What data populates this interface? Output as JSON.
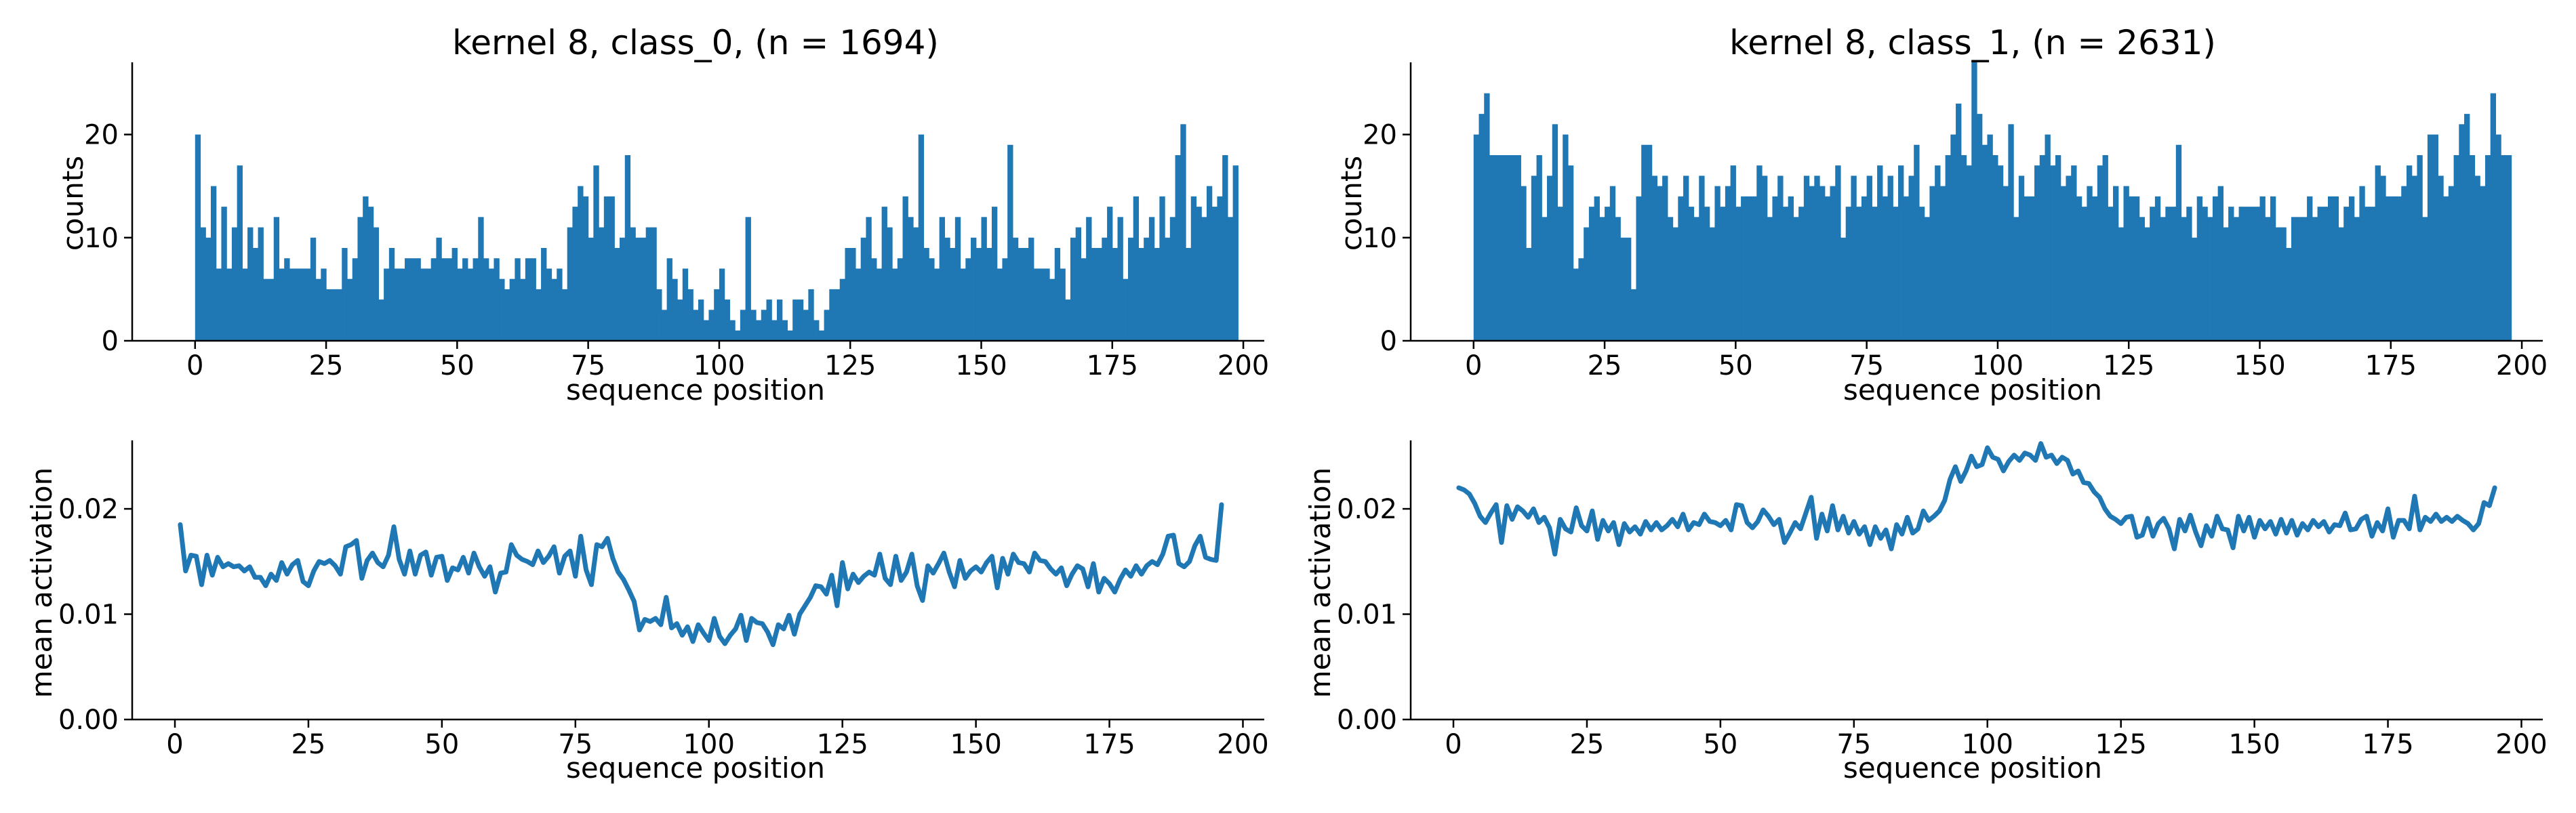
{
  "chart_data": [
    {
      "type": "bar",
      "panel": "top-left",
      "title": "kernel 8, class_0, (n = 1694)",
      "xlabel": "sequence position",
      "ylabel": "counts",
      "xlim": [
        -12,
        204
      ],
      "ylim": [
        0,
        27
      ],
      "xticks": [
        0,
        25,
        50,
        75,
        100,
        125,
        150,
        175,
        200
      ],
      "yticks": [
        0,
        10,
        20
      ],
      "color": "#1f77b4",
      "x_start": 0,
      "values": [
        20,
        11,
        10,
        15,
        7,
        13,
        7,
        11,
        17,
        7,
        11,
        9,
        11,
        6,
        6,
        12,
        7,
        8,
        7,
        7,
        7,
        7,
        10,
        6,
        7,
        5,
        5,
        5,
        9,
        6,
        8,
        12,
        14,
        13,
        11,
        4,
        7,
        9,
        7,
        7,
        8,
        8,
        8,
        7,
        7,
        8,
        10,
        8,
        8,
        9,
        7,
        8,
        7,
        8,
        12,
        8,
        7,
        8,
        6,
        5,
        6,
        8,
        6,
        8,
        8,
        5,
        9,
        7,
        6,
        7,
        5,
        11,
        13,
        15,
        14,
        10,
        17,
        11,
        14,
        14,
        9,
        10,
        18,
        11,
        10,
        10,
        11,
        11,
        5,
        3,
        8,
        6,
        4,
        7,
        5,
        3,
        4,
        2,
        3,
        5,
        7,
        4,
        2,
        1,
        3,
        12,
        3,
        2,
        3,
        4,
        2,
        4,
        2,
        1,
        4,
        4,
        3,
        5,
        2,
        1,
        3,
        5,
        5,
        6,
        9,
        9,
        7,
        10,
        12,
        8,
        7,
        13,
        11,
        7,
        8,
        14,
        12,
        11,
        20,
        9,
        8,
        7,
        12,
        10,
        9,
        12,
        7,
        8,
        10,
        9,
        12,
        9,
        13,
        7,
        8,
        19,
        10,
        9,
        9,
        10,
        7,
        7,
        7,
        6,
        9,
        7,
        4,
        10,
        11,
        8,
        12,
        9,
        9,
        10,
        13,
        9,
        12,
        6,
        10,
        14,
        9,
        10,
        12,
        9,
        14,
        10,
        12,
        18,
        21,
        9,
        14,
        13,
        12,
        15,
        13,
        14,
        18,
        12,
        17
      ]
    },
    {
      "type": "bar",
      "panel": "top-right",
      "title": "kernel 8, class_1, (n = 2631)",
      "xlabel": "sequence position",
      "ylabel": "counts",
      "xlim": [
        -12,
        204
      ],
      "ylim": [
        0,
        27
      ],
      "xticks": [
        0,
        25,
        50,
        75,
        100,
        125,
        150,
        175,
        200
      ],
      "yticks": [
        0,
        10,
        20
      ],
      "color": "#1f77b4",
      "x_start": 0,
      "values": [
        20,
        22,
        24,
        18,
        18,
        18,
        18,
        18,
        18,
        15,
        9,
        16,
        18,
        12,
        16,
        21,
        13,
        20,
        17,
        7,
        8,
        11,
        13,
        14,
        12,
        13,
        15,
        12,
        10,
        10,
        5,
        14,
        19,
        19,
        16,
        15,
        16,
        12,
        11,
        14,
        16,
        13,
        12,
        16,
        13,
        11,
        15,
        13,
        15,
        17,
        13,
        14,
        14,
        14,
        17,
        16,
        12,
        14,
        16,
        13,
        14,
        12,
        13,
        16,
        15,
        16,
        15,
        14,
        15,
        17,
        10,
        13,
        16,
        13,
        14,
        16,
        13,
        17,
        14,
        16,
        13,
        17,
        14,
        16,
        19,
        13,
        12,
        15,
        17,
        15,
        18,
        20,
        23,
        18,
        17,
        27,
        22,
        19,
        20,
        18,
        17,
        15,
        21,
        12,
        16,
        14,
        14,
        17,
        18,
        20,
        17,
        18,
        15,
        16,
        17,
        14,
        13,
        15,
        14,
        17,
        18,
        13,
        15,
        11,
        15,
        14,
        14,
        12,
        11,
        13,
        14,
        12,
        13,
        13,
        19,
        12,
        13,
        10,
        14,
        13,
        12,
        14,
        15,
        11,
        13,
        12,
        13,
        13,
        13,
        13,
        14,
        12,
        14,
        11,
        11,
        9,
        12,
        12,
        12,
        14,
        12,
        13,
        13,
        14,
        14,
        11,
        13,
        14,
        12,
        15,
        13,
        13,
        17,
        16,
        14,
        14,
        14,
        15,
        17,
        16,
        18,
        12,
        20,
        20,
        16,
        14,
        15,
        18,
        21,
        22,
        18,
        16,
        15,
        18,
        24,
        20,
        18,
        18
      ]
    },
    {
      "type": "line",
      "panel": "bottom-left",
      "xlabel": "sequence position",
      "ylabel": "mean activation",
      "xlim": [
        -8,
        204
      ],
      "ylim": [
        0,
        0.0265
      ],
      "xticks": [
        0,
        25,
        50,
        75,
        100,
        125,
        150,
        175,
        200
      ],
      "yticks": [
        0,
        0.01,
        0.02
      ],
      "ytick_labels": [
        "0.00",
        "0.01",
        "0.02"
      ],
      "color": "#1f77b4",
      "x_start": 1,
      "values": [
        0.0185,
        0.0141,
        0.0156,
        0.0155,
        0.0128,
        0.0156,
        0.0137,
        0.0154,
        0.0145,
        0.0148,
        0.0145,
        0.0146,
        0.0141,
        0.0145,
        0.0135,
        0.0135,
        0.0127,
        0.0138,
        0.0132,
        0.0149,
        0.0138,
        0.0147,
        0.0151,
        0.0131,
        0.0127,
        0.0141,
        0.015,
        0.0148,
        0.0151,
        0.0146,
        0.0138,
        0.0164,
        0.0166,
        0.017,
        0.0134,
        0.0151,
        0.0158,
        0.0149,
        0.0145,
        0.0156,
        0.0183,
        0.0152,
        0.0138,
        0.016,
        0.0138,
        0.0156,
        0.0159,
        0.0137,
        0.0154,
        0.0155,
        0.0132,
        0.0144,
        0.0142,
        0.0154,
        0.0139,
        0.0158,
        0.0145,
        0.0136,
        0.0145,
        0.0121,
        0.0139,
        0.014,
        0.0166,
        0.0156,
        0.0152,
        0.015,
        0.0147,
        0.016,
        0.0149,
        0.0155,
        0.0164,
        0.0139,
        0.0155,
        0.016,
        0.0136,
        0.0174,
        0.0142,
        0.0128,
        0.0166,
        0.0164,
        0.0172,
        0.0153,
        0.014,
        0.0133,
        0.0123,
        0.0112,
        0.0085,
        0.0095,
        0.0093,
        0.0096,
        0.009,
        0.0116,
        0.0087,
        0.0091,
        0.008,
        0.0088,
        0.0074,
        0.009,
        0.0082,
        0.0075,
        0.0096,
        0.0079,
        0.0072,
        0.008,
        0.0086,
        0.0099,
        0.0075,
        0.0096,
        0.0092,
        0.0091,
        0.0083,
        0.0071,
        0.009,
        0.0086,
        0.0099,
        0.0081,
        0.01,
        0.0108,
        0.0116,
        0.0127,
        0.0126,
        0.0119,
        0.0137,
        0.0108,
        0.0149,
        0.0124,
        0.0138,
        0.013,
        0.0136,
        0.014,
        0.0137,
        0.0157,
        0.0134,
        0.0128,
        0.0155,
        0.0132,
        0.014,
        0.0157,
        0.0127,
        0.0113,
        0.0146,
        0.0139,
        0.0148,
        0.0158,
        0.014,
        0.0126,
        0.0151,
        0.0134,
        0.0141,
        0.0145,
        0.014,
        0.0149,
        0.0155,
        0.0125,
        0.0153,
        0.0138,
        0.0157,
        0.0149,
        0.0148,
        0.014,
        0.0158,
        0.0151,
        0.015,
        0.0143,
        0.0138,
        0.0144,
        0.0127,
        0.0138,
        0.0146,
        0.0143,
        0.0126,
        0.0148,
        0.0121,
        0.0134,
        0.0129,
        0.0121,
        0.0133,
        0.0142,
        0.0136,
        0.0146,
        0.0138,
        0.0146,
        0.015,
        0.0147,
        0.0157,
        0.0174,
        0.0175,
        0.0148,
        0.0145,
        0.015,
        0.0165,
        0.0174,
        0.0154,
        0.0152,
        0.0151,
        0.0204
      ]
    },
    {
      "type": "line",
      "panel": "bottom-right",
      "xlabel": "sequence position",
      "ylabel": "mean activation",
      "xlim": [
        -8,
        204
      ],
      "ylim": [
        0,
        0.0265
      ],
      "xticks": [
        0,
        25,
        50,
        75,
        100,
        125,
        150,
        175,
        200
      ],
      "yticks": [
        0,
        0.01,
        0.02
      ],
      "ytick_labels": [
        "0.00",
        "0.01",
        "0.02"
      ],
      "color": "#1f77b4",
      "x_start": 1,
      "values": [
        0.022,
        0.0218,
        0.0214,
        0.0205,
        0.0193,
        0.0187,
        0.0196,
        0.0204,
        0.0168,
        0.0203,
        0.019,
        0.0202,
        0.0198,
        0.0192,
        0.02,
        0.0187,
        0.0192,
        0.0182,
        0.0157,
        0.019,
        0.0181,
        0.0178,
        0.0201,
        0.0184,
        0.0179,
        0.0198,
        0.0171,
        0.0189,
        0.0179,
        0.0187,
        0.0166,
        0.0186,
        0.0178,
        0.0183,
        0.0176,
        0.0188,
        0.018,
        0.0187,
        0.018,
        0.0184,
        0.019,
        0.0183,
        0.0195,
        0.018,
        0.0187,
        0.0185,
        0.0195,
        0.0188,
        0.0187,
        0.0184,
        0.0189,
        0.018,
        0.0204,
        0.0203,
        0.0187,
        0.0182,
        0.0188,
        0.0199,
        0.0193,
        0.0185,
        0.019,
        0.0168,
        0.0177,
        0.0187,
        0.0181,
        0.0196,
        0.0211,
        0.0172,
        0.0195,
        0.0179,
        0.0203,
        0.018,
        0.0193,
        0.0177,
        0.0188,
        0.0176,
        0.0183,
        0.0166,
        0.0183,
        0.0172,
        0.018,
        0.0162,
        0.0185,
        0.0176,
        0.0192,
        0.0177,
        0.0181,
        0.0198,
        0.0189,
        0.0193,
        0.0198,
        0.0208,
        0.0228,
        0.024,
        0.0226,
        0.0236,
        0.025,
        0.024,
        0.0242,
        0.0258,
        0.0249,
        0.0247,
        0.0236,
        0.0245,
        0.0251,
        0.0246,
        0.0253,
        0.0251,
        0.0246,
        0.0262,
        0.0249,
        0.0251,
        0.0243,
        0.0249,
        0.0246,
        0.0233,
        0.0236,
        0.0225,
        0.0224,
        0.0216,
        0.0211,
        0.02,
        0.0193,
        0.019,
        0.0186,
        0.0192,
        0.0193,
        0.0173,
        0.0175,
        0.0191,
        0.0174,
        0.0186,
        0.0191,
        0.0181,
        0.0162,
        0.019,
        0.0179,
        0.0194,
        0.0178,
        0.0165,
        0.0184,
        0.0174,
        0.0193,
        0.0181,
        0.018,
        0.0163,
        0.0193,
        0.0179,
        0.0192,
        0.0173,
        0.0189,
        0.0181,
        0.0188,
        0.0176,
        0.019,
        0.0177,
        0.0189,
        0.0175,
        0.0186,
        0.018,
        0.0189,
        0.0183,
        0.0188,
        0.0178,
        0.0185,
        0.0184,
        0.0196,
        0.018,
        0.0181,
        0.019,
        0.0193,
        0.0174,
        0.0187,
        0.0179,
        0.02,
        0.0173,
        0.0189,
        0.0189,
        0.0181,
        0.0212,
        0.018,
        0.0192,
        0.0188,
        0.0195,
        0.0188,
        0.0192,
        0.0188,
        0.0193,
        0.0189,
        0.0186,
        0.018,
        0.0186,
        0.0206,
        0.0203,
        0.022
      ]
    }
  ]
}
